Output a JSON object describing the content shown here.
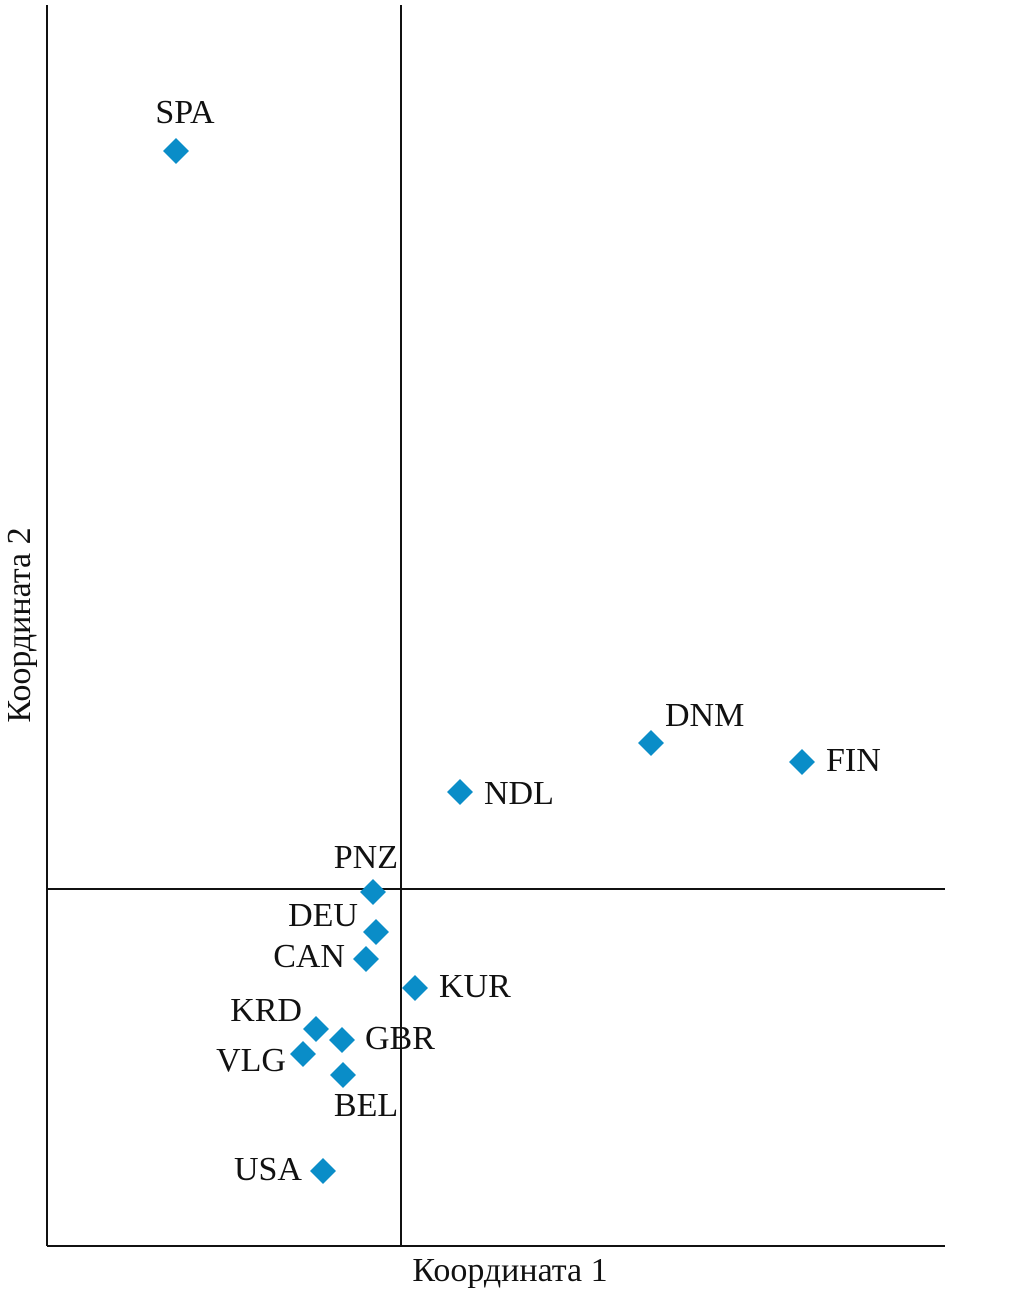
{
  "chart_data": {
    "type": "scatter",
    "x_label": "Координата 1",
    "y_label": "Координата 2",
    "point_labels": [
      "SPA",
      "DNM",
      "FIN",
      "NDL",
      "PNZ",
      "DEU",
      "CAN",
      "KUR",
      "KRD",
      "GBR",
      "VLG",
      "BEL",
      "USA"
    ],
    "x": [
      -2.25,
      2.5,
      4.01,
      0.59,
      -0.28,
      -0.25,
      -0.35,
      0.14,
      -0.85,
      -0.59,
      -0.98,
      -0.58,
      -0.78
    ],
    "values": [
      7.38,
      1.46,
      1.27,
      0.97,
      -0.03,
      -0.43,
      -0.7,
      -0.99,
      -1.4,
      -1.51,
      -1.65,
      -1.86,
      -2.82
    ],
    "color": "#0a8dc8",
    "xlim": [
      -3.54,
      5.44
    ],
    "ylim": [
      -3.57,
      8.84
    ],
    "zero_lines": true
  }
}
